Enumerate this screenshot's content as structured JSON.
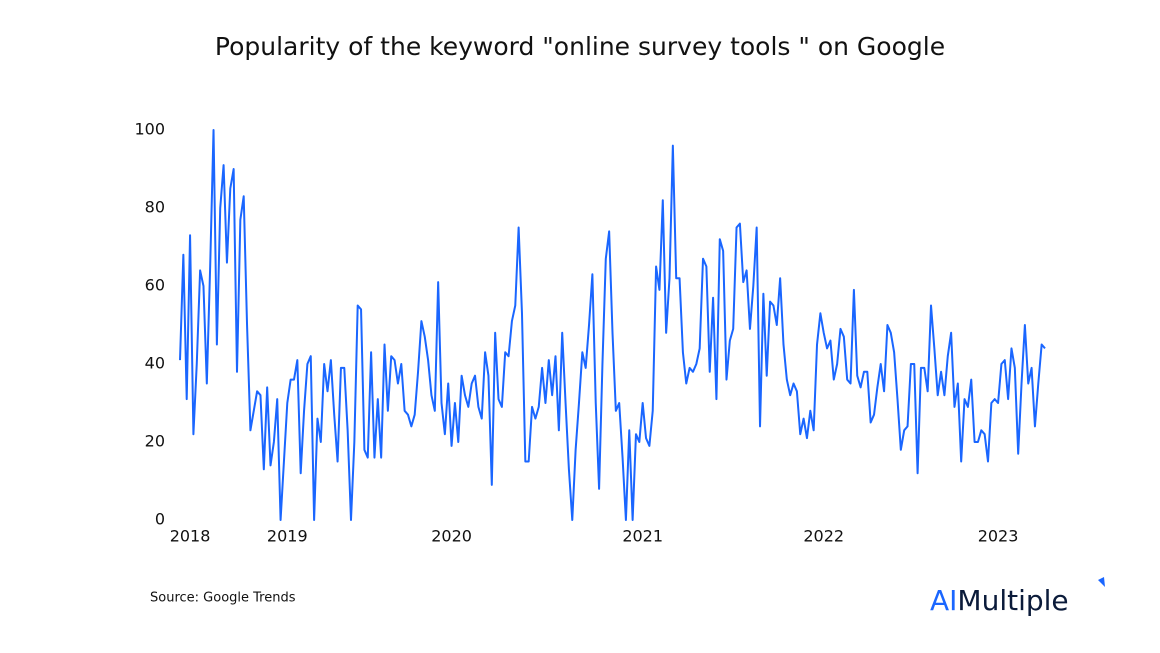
{
  "chart_data": {
    "type": "line",
    "title": "Popularity of the keyword \"online survey tools \" on Google",
    "source": "Source: Google Trends",
    "logo": {
      "prefix": "AI",
      "suffix": "Multiple"
    },
    "series": [
      {
        "name": "online survey tools",
        "color": "#1a66ff",
        "values": [
          41,
          68,
          31,
          73,
          22,
          40,
          64,
          60,
          35,
          65,
          100,
          45,
          80,
          91,
          66,
          85,
          90,
          38,
          77,
          83,
          50,
          23,
          28,
          33,
          32,
          13,
          34,
          14,
          20,
          31,
          0,
          15,
          30,
          36,
          36,
          41,
          12,
          28,
          40,
          42,
          0,
          26,
          20,
          40,
          33,
          41,
          27,
          15,
          39,
          39,
          23,
          0,
          20,
          55,
          54,
          18,
          16,
          43,
          16,
          31,
          16,
          45,
          28,
          42,
          41,
          35,
          40,
          28,
          27,
          24,
          27,
          38,
          51,
          47,
          41,
          32,
          28,
          61,
          30,
          22,
          35,
          19,
          30,
          20,
          37,
          32,
          29,
          35,
          37,
          29,
          26,
          43,
          37,
          9,
          48,
          31,
          29,
          43,
          42,
          51,
          55,
          75,
          53,
          15,
          15,
          29,
          26,
          29,
          39,
          30,
          41,
          32,
          42,
          23,
          48,
          30,
          13,
          0,
          18,
          30,
          43,
          39,
          50,
          63,
          30,
          8,
          40,
          67,
          74,
          48,
          28,
          30,
          16,
          0,
          23,
          0,
          22,
          20,
          30,
          21,
          19,
          28,
          65,
          59,
          82,
          48,
          62,
          96,
          62,
          62,
          43,
          35,
          39,
          38,
          40,
          44,
          67,
          65,
          38,
          57,
          31,
          72,
          69,
          36,
          46,
          49,
          75,
          76,
          61,
          64,
          49,
          60,
          75,
          24,
          58,
          37,
          56,
          55,
          50,
          62,
          45,
          36,
          32,
          35,
          33,
          22,
          26,
          21,
          28,
          23,
          45,
          53,
          48,
          44,
          46,
          36,
          40,
          49,
          47,
          36,
          35,
          59,
          37,
          34,
          38,
          38,
          25,
          27,
          34,
          40,
          33,
          50,
          48,
          43,
          31,
          18,
          23,
          24,
          40,
          40,
          12,
          39,
          39,
          33,
          55,
          44,
          32,
          38,
          32,
          42,
          48,
          29,
          35,
          15,
          31,
          29,
          36,
          20,
          20,
          23,
          22,
          15,
          30,
          31,
          30,
          40,
          41,
          31,
          44,
          39,
          17,
          35,
          50,
          35,
          39,
          24,
          35,
          45,
          44
        ]
      }
    ],
    "xlim": [
      0,
      258
    ],
    "xticks": [
      {
        "value": 3,
        "label": "2018"
      },
      {
        "value": 32,
        "label": "2019"
      },
      {
        "value": 81,
        "label": "2020"
      },
      {
        "value": 138,
        "label": "2021"
      },
      {
        "value": 192,
        "label": "2022"
      },
      {
        "value": 244,
        "label": "2023"
      }
    ],
    "ylim": [
      0,
      100
    ],
    "yticks": [
      0,
      20,
      40,
      60,
      80,
      100
    ],
    "grid": false
  }
}
